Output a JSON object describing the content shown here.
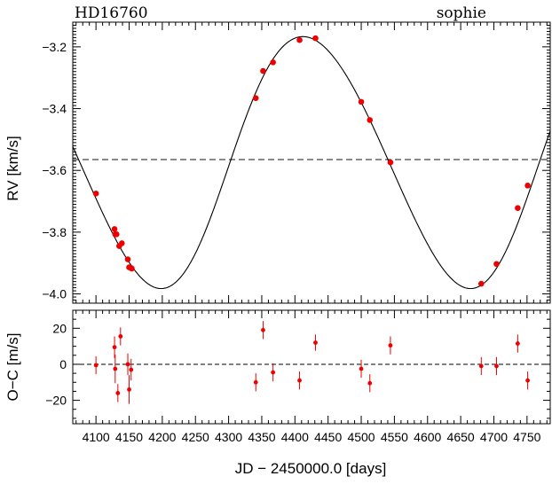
{
  "chart_data": [
    {
      "type": "line",
      "title": "HD16760",
      "subtitle": "sophie",
      "ylabel": "RV [km/s]",
      "xlim": [
        4065,
        4785
      ],
      "ylim": [
        -4.03,
        -3.12
      ],
      "xticks": [
        4100,
        4150,
        4200,
        4250,
        4300,
        4350,
        4400,
        4450,
        4500,
        4550,
        4600,
        4650,
        4700,
        4750
      ],
      "yticks": [
        -4.0,
        -3.8,
        -3.6,
        -3.4,
        -3.2
      ],
      "ytick_labels": [
        "−4.0",
        "−3.8",
        "−3.6",
        "−3.4",
        "−3.2"
      ],
      "systemic_velocity": -3.565,
      "model": {
        "period": 466.5,
        "semi_amplitude": 0.408,
        "time_of_max": 4412,
        "eccentricity": 0.07,
        "omega_deg": 250
      },
      "series": [
        {
          "x": [
            4100,
            4128,
            4129,
            4131,
            4135,
            4139,
            4148,
            4150,
            4153,
            4154,
            4341,
            4352,
            4367,
            4407,
            4431,
            4500,
            4513,
            4544,
            4681,
            4704,
            4736,
            4751
          ],
          "y": [
            -3.675,
            -3.79,
            -3.807,
            -3.807,
            -3.845,
            -3.836,
            -3.888,
            -3.914,
            -3.916,
            -3.918,
            -3.366,
            -3.278,
            -3.25,
            -3.178,
            -3.172,
            -3.378,
            -3.437,
            -3.574,
            -3.967,
            -3.903,
            -3.722,
            -3.649
          ]
        }
      ]
    },
    {
      "type": "scatter",
      "xlabel": "JD − 2450000.0 [days]",
      "ylabel": "O−C [m/s]",
      "xlim": [
        4065,
        4785
      ],
      "ylim": [
        -33,
        30
      ],
      "xticks": [
        4100,
        4150,
        4200,
        4250,
        4300,
        4350,
        4400,
        4450,
        4500,
        4550,
        4600,
        4650,
        4700,
        4750
      ],
      "yticks": [
        -20,
        0,
        20
      ],
      "ytick_labels": [
        "−20",
        "0",
        "20"
      ],
      "zero_line": 0,
      "series": [
        {
          "x": [
            4100,
            4128,
            4129,
            4133,
            4137,
            4148,
            4150,
            4153,
            4341,
            4352,
            4367,
            4407,
            4431,
            4500,
            4513,
            4544,
            4681,
            4704,
            4736,
            4751
          ],
          "y": [
            -0.5,
            9.5,
            -2.5,
            -16,
            15.5,
            0,
            -14,
            -3,
            -10,
            19,
            -4.5,
            -9,
            12,
            -2.5,
            -10.5,
            10.5,
            -1,
            -1,
            11.5,
            -9
          ],
          "err": [
            5,
            6,
            8,
            5,
            5,
            6,
            8,
            6,
            5,
            5,
            5,
            5,
            4.5,
            5,
            5,
            5,
            5,
            5,
            5,
            5
          ]
        }
      ]
    }
  ]
}
